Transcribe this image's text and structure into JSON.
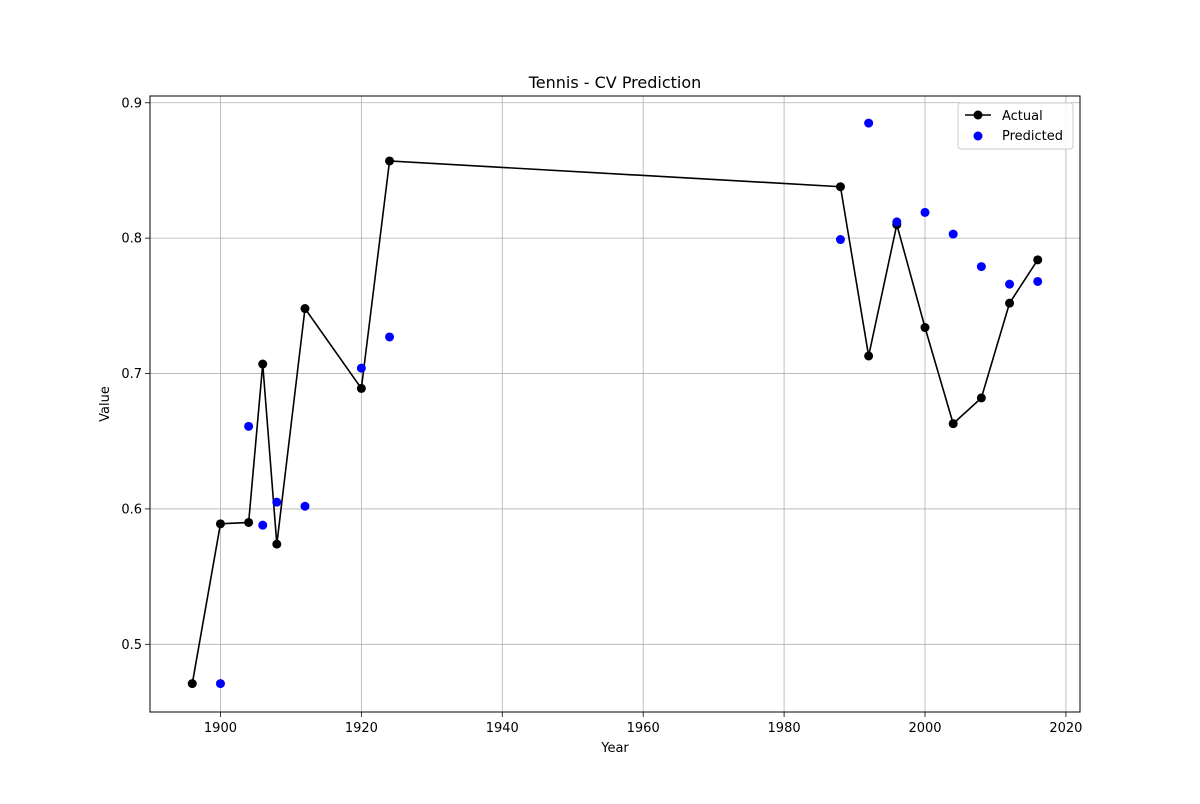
{
  "chart_data": {
    "type": "line",
    "title": "Tennis - CV Prediction",
    "xlabel": "Year",
    "ylabel": "Value",
    "xlim": [
      1890.0,
      2022.0
    ],
    "ylim": [
      0.45,
      0.905
    ],
    "x_ticks": [
      1900,
      1920,
      1940,
      1960,
      1980,
      2000,
      2020
    ],
    "y_ticks": [
      0.5,
      0.6,
      0.7,
      0.8,
      0.9
    ],
    "x_tick_labels": [
      "1900",
      "1920",
      "1940",
      "1960",
      "1980",
      "2000",
      "2020"
    ],
    "y_tick_labels": [
      "0.5",
      "0.6",
      "0.7",
      "0.8",
      "0.9"
    ],
    "grid": true,
    "legend_position": "top-right",
    "series": [
      {
        "name": "Actual",
        "style": "line-with-markers",
        "color": "#000000",
        "x": [
          1896,
          1900,
          1904,
          1906,
          1908,
          1912,
          1920,
          1924,
          1988,
          1992,
          1996,
          2000,
          2004,
          2008,
          2012,
          2016
        ],
        "y": [
          0.471,
          0.589,
          0.59,
          0.707,
          0.574,
          0.748,
          0.689,
          0.857,
          0.838,
          0.713,
          0.81,
          0.734,
          0.663,
          0.682,
          0.752,
          0.784
        ]
      },
      {
        "name": "Predicted",
        "style": "scatter",
        "color": "#0000ff",
        "x": [
          1900,
          1904,
          1906,
          1908,
          1912,
          1920,
          1924,
          1988,
          1992,
          1996,
          2000,
          2004,
          2008,
          2012,
          2016
        ],
        "y": [
          0.471,
          0.661,
          0.588,
          0.605,
          0.602,
          0.704,
          0.727,
          0.799,
          0.885,
          0.812,
          0.819,
          0.803,
          0.779,
          0.766,
          0.768
        ]
      }
    ]
  }
}
